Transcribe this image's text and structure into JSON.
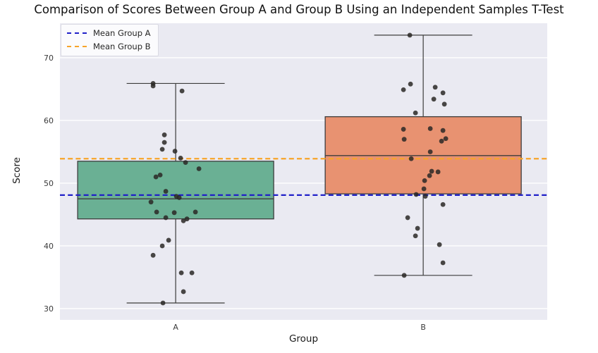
{
  "title": "Comparison of Scores Between Group A and Group B Using an Independent Samples T-Test",
  "axes": {
    "xlabel": "Group",
    "ylabel": "Score",
    "yticks": [
      30,
      40,
      50,
      60,
      70
    ],
    "ylim": [
      28.2,
      75.5
    ]
  },
  "legend": {
    "items": [
      {
        "label": "Mean Group A",
        "color": "#2020c8"
      },
      {
        "label": "Mean Group B",
        "color": "#f7a42a"
      }
    ]
  },
  "colors": {
    "figure_bg": "#ffffff",
    "plot_bg": "#eaeaf2",
    "grid": "#ffffff",
    "box_edge": "#3d3d3d",
    "tick_label": "#3a3a3a",
    "point": "rgba(42,40,38,0.85)",
    "mean_a": "#2020c8",
    "mean_b": "#f7a42a"
  },
  "chart_data": {
    "type": "box",
    "title": "Comparison of Scores Between Group A and Group B Using an Independent Samples T-Test",
    "xlabel": "Group",
    "ylabel": "Score",
    "ylim": [
      28.2,
      75.5
    ],
    "yticks": [
      30,
      40,
      50,
      60,
      70
    ],
    "grid": "horizontal-major",
    "legend_position": "upper-left",
    "groups": [
      {
        "name": "A",
        "x_frac": 0.2375,
        "fill": "#6ab094",
        "box": {
          "whisker_low": 30.9,
          "q1": 44.3,
          "median": 47.5,
          "q3": 53.5,
          "whisker_high": 65.9
        },
        "points": [
          [
            -32,
            65.9
          ],
          [
            -32,
            65.5
          ],
          [
            9,
            64.7
          ],
          [
            -16,
            57.7
          ],
          [
            -16,
            56.5
          ],
          [
            -19,
            55.4
          ],
          [
            -1,
            55.1
          ],
          [
            7,
            54.0
          ],
          [
            14,
            53.3
          ],
          [
            33,
            52.3
          ],
          [
            -28,
            51.0
          ],
          [
            -22,
            51.3
          ],
          [
            -14,
            48.7
          ],
          [
            1,
            47.9
          ],
          [
            5,
            47.7
          ],
          [
            -35,
            47.0
          ],
          [
            -27,
            45.4
          ],
          [
            -14,
            44.5
          ],
          [
            -2,
            45.3
          ],
          [
            11,
            44.0
          ],
          [
            16,
            44.3
          ],
          [
            28,
            45.4
          ],
          [
            -10,
            40.9
          ],
          [
            -19,
            40.0
          ],
          [
            -32,
            38.5
          ],
          [
            8,
            35.7
          ],
          [
            23,
            35.7
          ],
          [
            11,
            32.7
          ],
          [
            -18,
            30.9
          ]
        ]
      },
      {
        "name": "B",
        "x_frac": 0.7455,
        "fill": "#e89271",
        "box": {
          "whisker_low": 35.3,
          "q1": 48.3,
          "median": 54.4,
          "q3": 60.6,
          "whisker_high": 73.6
        },
        "points": [
          [
            -19,
            73.6
          ],
          [
            -18,
            65.8
          ],
          [
            -28,
            64.9
          ],
          [
            17,
            65.3
          ],
          [
            28,
            64.4
          ],
          [
            15,
            63.4
          ],
          [
            30,
            62.6
          ],
          [
            -11,
            61.2
          ],
          [
            -28,
            58.6
          ],
          [
            10,
            58.7
          ],
          [
            28,
            58.4
          ],
          [
            -27,
            57.0
          ],
          [
            26,
            56.7
          ],
          [
            32,
            57.1
          ],
          [
            10,
            55.0
          ],
          [
            -17,
            53.9
          ],
          [
            12,
            51.9
          ],
          [
            21,
            51.8
          ],
          [
            9,
            51.2
          ],
          [
            2,
            50.4
          ],
          [
            1,
            49.1
          ],
          [
            -10,
            48.2
          ],
          [
            3,
            47.9
          ],
          [
            28,
            46.6
          ],
          [
            -22,
            44.5
          ],
          [
            -8,
            42.8
          ],
          [
            -11,
            41.6
          ],
          [
            23,
            40.2
          ],
          [
            28,
            37.3
          ],
          [
            -27,
            35.3
          ]
        ]
      }
    ],
    "mean_lines": [
      {
        "label": "Mean Group A",
        "value": 48.1,
        "color": "#2020c8"
      },
      {
        "label": "Mean Group B",
        "value": 53.9,
        "color": "#f7a42a"
      }
    ]
  }
}
